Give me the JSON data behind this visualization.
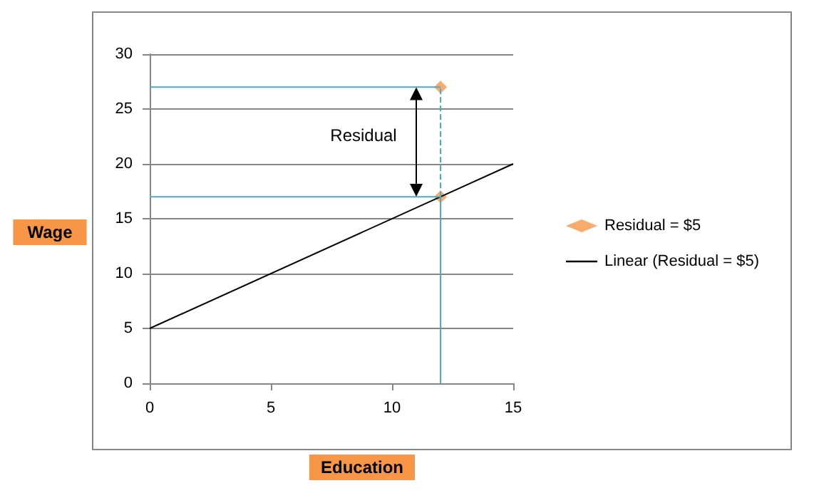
{
  "chart_data": {
    "type": "scatter",
    "xlabel": "Education",
    "ylabel": "Wage",
    "xlim": [
      0,
      15
    ],
    "xticks": [
      0,
      5,
      10,
      15
    ],
    "ylim": [
      0,
      30
    ],
    "yticks": [
      0,
      5,
      10,
      15,
      20,
      25,
      30
    ],
    "grid": "y",
    "legend": "right",
    "annotations": [
      "Residual"
    ],
    "series": [
      {
        "name": "Residual = $5",
        "color": "#f79646",
        "x": [
          12,
          12
        ],
        "values": [
          27,
          17
        ],
        "marker": "diamond"
      },
      {
        "name": "Linear (Residual = $5)",
        "type": "line",
        "color": "#000000",
        "x": [
          0,
          15
        ],
        "values": [
          5,
          20
        ]
      },
      {
        "type": "line",
        "color": "#4bacc6",
        "x": [
          12,
          0
        ],
        "values": [
          27,
          27
        ]
      },
      {
        "type": "line",
        "color": "#4bacc6",
        "x": [
          12,
          0
        ],
        "values": [
          17,
          17
        ]
      },
      {
        "type": "line",
        "color": "#4bacc6",
        "x": [
          12,
          12
        ],
        "values": [
          17,
          27
        ],
        "line_style": "dashed"
      },
      {
        "type": "line",
        "color": "#4bacc6",
        "x": [
          12,
          12
        ],
        "values": [
          0,
          17
        ]
      },
      {
        "type": "line",
        "color": "#000000",
        "x": [
          11,
          11
        ],
        "values": [
          17.6,
          26.4
        ],
        "marker": "triangle"
      }
    ]
  }
}
